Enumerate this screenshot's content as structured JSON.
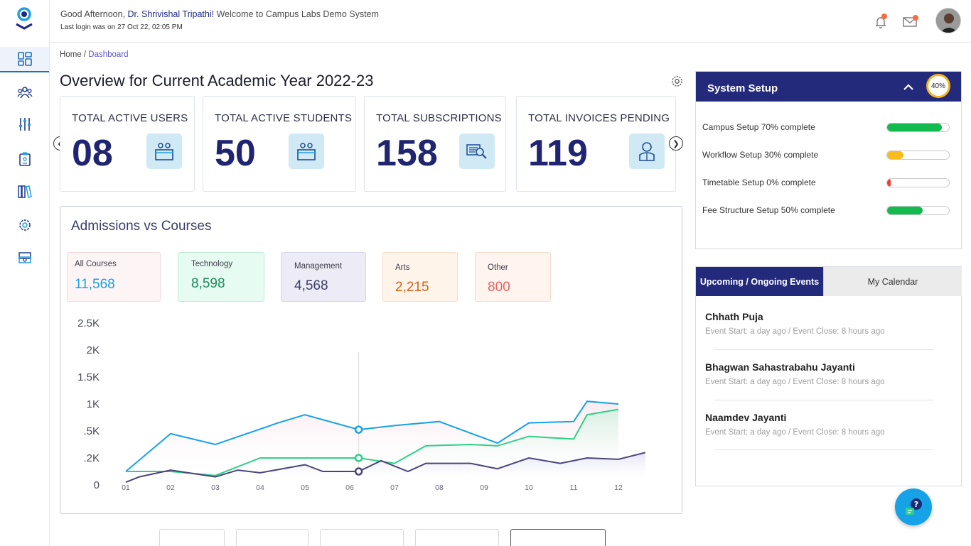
{
  "header": {
    "greeting_prefix": "Good Afternoon,",
    "user_name": "Dr. Shrivishal Tripathi!",
    "greeting_suffix": "Welcome to Campus Labs Demo System",
    "last_login": "Last login was on 27 Oct 22, 02:05 PM"
  },
  "sidebar": {
    "items": [
      {
        "icon": "dashboard-icon",
        "active": true
      },
      {
        "icon": "users-icon"
      },
      {
        "icon": "sliders-icon"
      },
      {
        "icon": "id-badge-icon"
      },
      {
        "icon": "books-icon"
      },
      {
        "icon": "settings-gear-icon"
      },
      {
        "icon": "money-icon"
      }
    ]
  },
  "breadcrumb": {
    "home": "Home",
    "separator": "/",
    "current": "Dashboard"
  },
  "page_title": "Overview for Current Academic Year 2022-23",
  "stats": [
    {
      "label": "TOTAL ACTIVE USERS",
      "value": "08",
      "icon": "users-desk-icon"
    },
    {
      "label": "TOTAL ACTIVE STUDENTS",
      "value": "50",
      "icon": "students-desk-icon"
    },
    {
      "label": "TOTAL SUBSCRIPTIONS",
      "value": "158",
      "icon": "search-document-icon"
    },
    {
      "label": "TOTAL INVOICES PENDING",
      "value": "119",
      "icon": "reader-icon"
    }
  ],
  "chart_card": {
    "title": "Admissions vs Courses",
    "categories": [
      {
        "label": "All Courses",
        "value": "11,568",
        "color": "#16a2e6",
        "bg": "#fdf4f5",
        "border": "#f4d9de"
      },
      {
        "label": "Technology",
        "value": "8,598",
        "color": "#1e8a5a",
        "bg": "#e6fbf1",
        "border": "#bfe9d3"
      },
      {
        "label": "Management",
        "value": "4,568",
        "color": "#3e3d67",
        "bg": "#ecebf6",
        "border": "#d6d4ea"
      },
      {
        "label": "Arts",
        "value": "2,215",
        "color": "#d86419",
        "bg": "#fff4ea",
        "border": "#f3dcc8"
      },
      {
        "label": "Other",
        "value": "800",
        "color": "#f06060",
        "bg": "#fff5ee",
        "border": "#f3dcc8"
      }
    ]
  },
  "chart_data": {
    "type": "line",
    "x": [
      "01",
      "02",
      "03",
      "04",
      "05",
      "06",
      "07",
      "08",
      "09",
      "10",
      "11",
      "12"
    ],
    "y_ticks": [
      "0",
      ".2K",
      ".5K",
      "1K",
      "1.5K",
      "2K",
      "2.5K"
    ],
    "series": [
      {
        "color": "#16a2e6",
        "points": [
          [
            0.0,
            0.5
          ],
          [
            1.0,
            1.9
          ],
          [
            2.0,
            1.5
          ],
          [
            3.4,
            2.3
          ],
          [
            4.0,
            2.6
          ],
          [
            5.2,
            2.05
          ],
          [
            6.0,
            2.2
          ],
          [
            7.0,
            2.35
          ],
          [
            8.3,
            1.55
          ],
          [
            9.0,
            2.3
          ],
          [
            10.0,
            2.35
          ],
          [
            10.3,
            3.1
          ],
          [
            11.0,
            3.0
          ]
        ],
        "marker_at": 5.2
      },
      {
        "color": "#2ed08a",
        "points": [
          [
            0.0,
            0.5
          ],
          [
            1.0,
            0.5
          ],
          [
            2.0,
            0.35
          ],
          [
            3.0,
            1.0
          ],
          [
            4.0,
            1.0
          ],
          [
            5.2,
            1.0
          ],
          [
            6.0,
            0.8
          ],
          [
            6.7,
            1.45
          ],
          [
            7.7,
            1.5
          ],
          [
            8.3,
            1.45
          ],
          [
            9.0,
            1.8
          ],
          [
            10.0,
            1.7
          ],
          [
            10.3,
            2.6
          ],
          [
            11.0,
            2.8
          ]
        ],
        "marker_at": 5.2
      },
      {
        "color": "#4a457a",
        "points": [
          [
            0.0,
            0.1
          ],
          [
            0.3,
            0.3
          ],
          [
            1.0,
            0.55
          ],
          [
            2.0,
            0.3
          ],
          [
            2.5,
            0.55
          ],
          [
            3.0,
            0.45
          ],
          [
            4.0,
            0.75
          ],
          [
            4.4,
            0.5
          ],
          [
            5.2,
            0.5
          ],
          [
            5.7,
            0.9
          ],
          [
            6.3,
            0.5
          ],
          [
            6.7,
            0.8
          ],
          [
            7.7,
            0.8
          ],
          [
            8.3,
            0.6
          ],
          [
            9.0,
            1.0
          ],
          [
            9.7,
            0.8
          ],
          [
            10.3,
            1.0
          ],
          [
            11.0,
            0.95
          ],
          [
            11.6,
            1.2
          ]
        ],
        "marker_at": 5.2
      }
    ]
  },
  "system_setup": {
    "title": "System Setup",
    "percent": "40%",
    "rows": [
      {
        "label": "Campus Setup 70% complete",
        "fill": 0.88,
        "color": "#13bb4f"
      },
      {
        "label": "Workflow Setup 30% complete",
        "fill": 0.27,
        "color": "#f8bd1c"
      },
      {
        "label": "Timetable Setup 0% complete",
        "fill": 0.06,
        "color": "#f03a3a"
      },
      {
        "label": "Fee Structure Setup 50% complete",
        "fill": 0.58,
        "color": "#13bb4f"
      }
    ]
  },
  "events": {
    "tab_active": "Upcoming / Ongoing Events",
    "tab_inactive": "My Calendar",
    "items": [
      {
        "name": "Chhath Puja",
        "meta": "Event Start: a day ago / Event Close: 8 hours ago"
      },
      {
        "name": "Bhagwan Sahastrabahu Jayanti",
        "meta": "Event Start: a day ago / Event Close: 8 hours ago"
      },
      {
        "name": "Naamdev Jayanti",
        "meta": "Event Start: a day ago / Event Close: 8 hours ago"
      }
    ]
  }
}
